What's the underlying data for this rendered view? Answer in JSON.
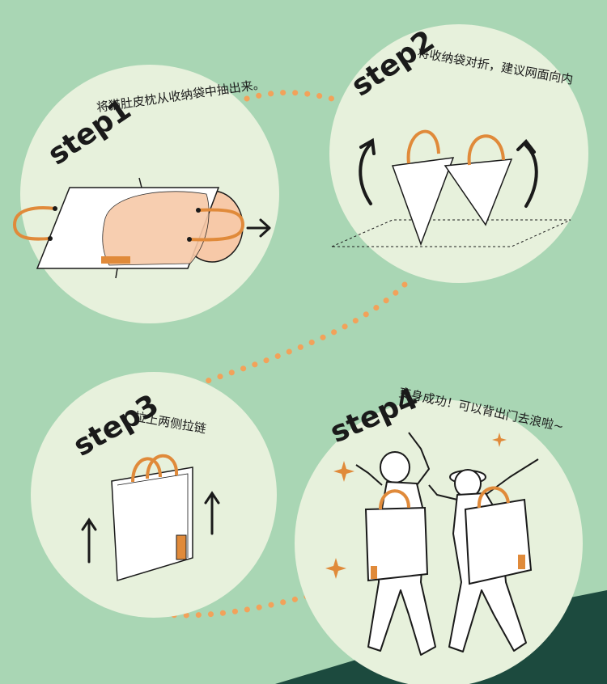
{
  "colors": {
    "background": "#a9d6b4",
    "circle_fill": "#e7f1dc",
    "dots": "#f2a25a",
    "handle": "#e08a3a",
    "pillow": "#f7c9a8",
    "ground": "#1c4a3e",
    "ink": "#1a1a1a"
  },
  "steps": [
    {
      "title": "step1",
      "desc": "将猫肚皮枕从收纳袋中抽出来。"
    },
    {
      "title": "step2",
      "desc": "将收纳袋对折，建议网面向内"
    },
    {
      "title": "step3",
      "desc": "拉上两侧拉链"
    },
    {
      "title": "step4",
      "desc": "变身成功！可以背出门去浪啦~"
    }
  ]
}
